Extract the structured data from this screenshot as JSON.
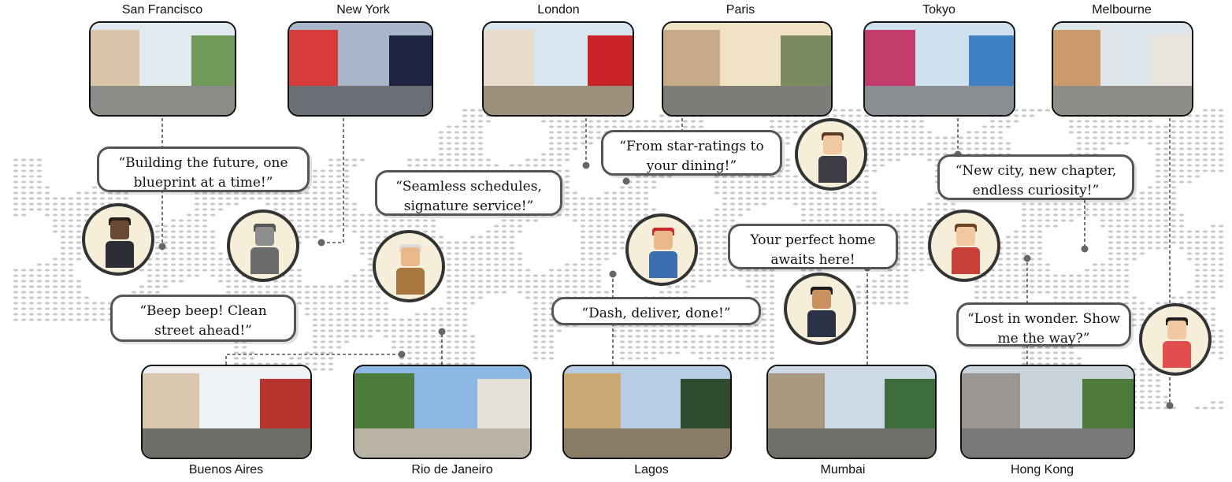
{
  "cities_top": [
    {
      "name": "San Francisco",
      "sky": "#dfe9ee",
      "ground": "#8c8d88",
      "b1": "#d9c6a8",
      "b2": "#6f9a5a"
    },
    {
      "name": "New York",
      "sky": "#a9b6c9",
      "ground": "#6b6f76",
      "b1": "#d63a3a",
      "b2": "#1d2340"
    },
    {
      "name": "London",
      "sky": "#d8e6ef",
      "ground": "#9c8f7c",
      "b1": "#e7dccb",
      "b2": "#c8242a"
    },
    {
      "name": "Paris",
      "sky": "#f1e2c4",
      "ground": "#7e7c78",
      "b1": "#c7ab88",
      "b2": "#7b8a5e"
    },
    {
      "name": "Tokyo",
      "sky": "#cfe0ef",
      "ground": "#8a8d92",
      "b1": "#c33b6a",
      "b2": "#3e82c4"
    },
    {
      "name": "Melbourne",
      "sky": "#dde5ea",
      "ground": "#8d8c87",
      "b1": "#c99a6b",
      "b2": "#e9e4dc"
    }
  ],
  "cities_bottom": [
    {
      "name": "Buenos Aires",
      "sky": "#eef2f5",
      "ground": "#6e6e6a",
      "b1": "#d9c7b0",
      "b2": "#b8342f"
    },
    {
      "name": "Rio de Janeiro",
      "sky": "#8db8e6",
      "ground": "#b9b3a6",
      "b1": "#4d7d3d",
      "b2": "#e4e0d6"
    },
    {
      "name": "Lagos",
      "sky": "#b6cde6",
      "ground": "#8a7b67",
      "b1": "#c9a871",
      "b2": "#2e4b2e"
    },
    {
      "name": "Mumbai",
      "sky": "#cdd9e4",
      "ground": "#6f6f6c",
      "b1": "#a89880",
      "b2": "#3d6d3a"
    },
    {
      "name": "Hong Kong",
      "sky": "#c9d3da",
      "ground": "#797a78",
      "b1": "#9a9792",
      "b2": "#4d7b3c"
    }
  ],
  "quotes": {
    "architect": "“Building the future, one blueprint at a time!”",
    "robot": "“Beep beep! Clean street ahead!”",
    "concierge": "“Seamless schedules, signature service!”",
    "reviewer": "“From star-ratings to your dining!”",
    "courier": "“Dash, deliver, done!”",
    "realtor": "Your perfect home awaits here!",
    "student": "“New city, new chapter, endless curiosity!”",
    "tourist": "“Lost in wonder. Show me the way?”"
  },
  "colors": {
    "map_dot": "#c9c9c9",
    "leader": "#555555",
    "bubble_border": "#555555"
  }
}
